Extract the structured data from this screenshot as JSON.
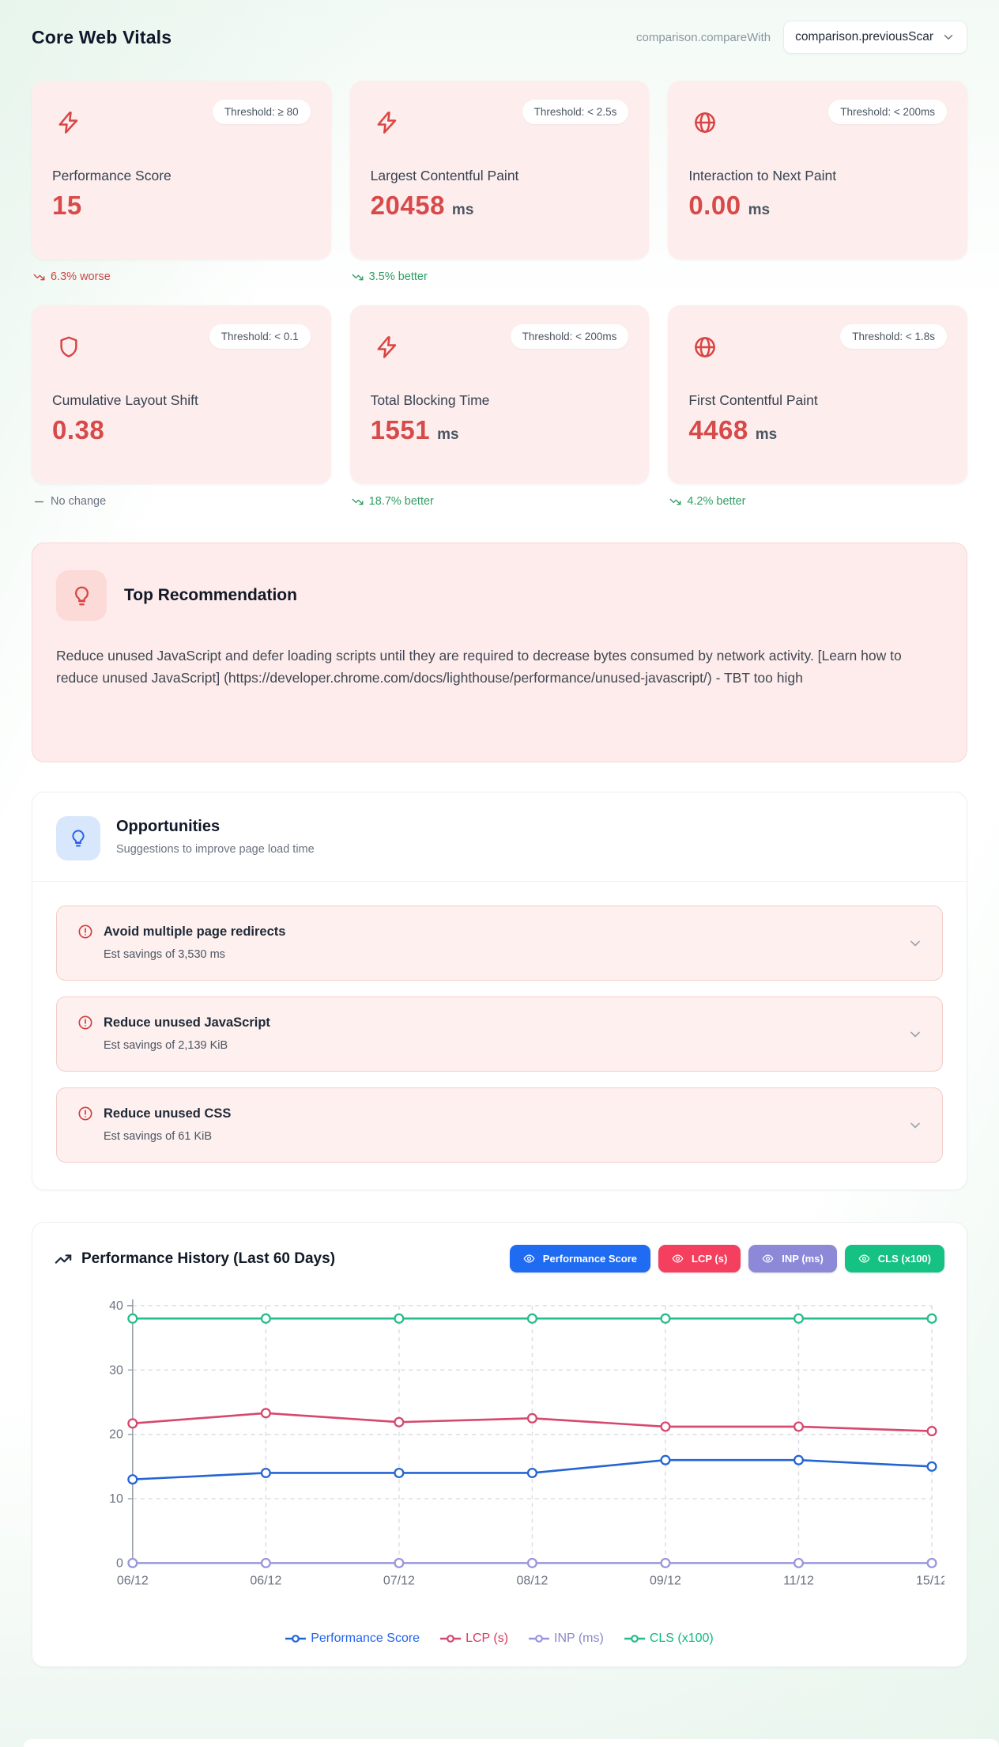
{
  "header": {
    "title": "Core Web Vitals",
    "compare_label": "comparison.compareWith",
    "compare_value": "comparison.previousScar"
  },
  "colors": {
    "trend_red": "#cf4444",
    "trend_green": "#2f9e64",
    "trend_gray": "#6b7280",
    "metric_accent": "#d84a4a"
  },
  "metrics": [
    {
      "icon": "zap-icon",
      "threshold": "Threshold: ≥ 80",
      "title": "Performance Score",
      "value": "15",
      "unit": "",
      "trend": {
        "style": "red",
        "icon": "trend-down-icon",
        "label": "6.3% worse"
      }
    },
    {
      "icon": "zap-icon",
      "threshold": "Threshold: < 2.5s",
      "title": "Largest Contentful Paint",
      "value": "20458",
      "unit": "ms",
      "trend": {
        "style": "green",
        "icon": "trend-down-icon",
        "label": "3.5% better"
      }
    },
    {
      "icon": "globe-icon",
      "threshold": "Threshold: < 200ms",
      "title": "Interaction to Next Paint",
      "value": "0.00",
      "unit": "ms",
      "trend": null
    },
    {
      "icon": "shield-icon",
      "threshold": "Threshold: < 0.1",
      "title": "Cumulative Layout Shift",
      "value": "0.38",
      "unit": "",
      "trend": {
        "style": "gray",
        "icon": "dash-icon",
        "label": "No change"
      }
    },
    {
      "icon": "zap-icon",
      "threshold": "Threshold: < 200ms",
      "title": "Total Blocking Time",
      "value": "1551",
      "unit": "ms",
      "trend": {
        "style": "green",
        "icon": "trend-down-icon",
        "label": "18.7% better"
      }
    },
    {
      "icon": "globe-icon",
      "threshold": "Threshold: < 1.8s",
      "title": "First Contentful Paint",
      "value": "4468",
      "unit": "ms",
      "trend": {
        "style": "green",
        "icon": "trend-down-icon",
        "label": "4.2% better"
      }
    }
  ],
  "top_recommendation": {
    "title": "Top Recommendation",
    "body": "Reduce unused JavaScript and defer loading scripts until they are required to decrease bytes consumed by network activity. [Learn how to reduce unused JavaScript] (https://developer.chrome.com/docs/lighthouse/performance/unused-javascript/) - TBT too high"
  },
  "opportunities": {
    "title": "Opportunities",
    "subtitle": "Suggestions to improve page load time",
    "items": [
      {
        "title": "Avoid multiple page redirects",
        "savings": "Est savings of 3,530 ms"
      },
      {
        "title": "Reduce unused JavaScript",
        "savings": "Est savings of 2,139 KiB"
      },
      {
        "title": "Reduce unused CSS",
        "savings": "Est savings of 61 KiB"
      }
    ]
  },
  "chart_section": {
    "title": "Performance History (Last 60 Days)"
  },
  "chart_data": {
    "type": "line",
    "title": "Performance History (Last 60 Days)",
    "categories": [
      "06/12",
      "06/12",
      "07/12",
      "08/12",
      "09/12",
      "11/12",
      "15/12"
    ],
    "series": [
      {
        "name": "Performance Score",
        "values": [
          13,
          14,
          14,
          14,
          16,
          16,
          15
        ],
        "line_color": "#2465d3",
        "button_color": "#1f6bf2",
        "legend_text_color": "#2563eb"
      },
      {
        "name": "LCP (s)",
        "values": [
          21.7,
          23.3,
          21.9,
          22.5,
          21.2,
          21.2,
          20.5
        ],
        "line_color": "#d6486e",
        "button_color": "#f43f5e",
        "legend_text_color": "#d93a5f"
      },
      {
        "name": "INP (ms)",
        "values": [
          0,
          0,
          0,
          0,
          0,
          0,
          0
        ],
        "line_color": "#9a96dd",
        "button_color": "#8d89d8",
        "legend_text_color": "#8b87c9"
      },
      {
        "name": "CLS (x100)",
        "values": [
          38,
          38,
          38,
          38,
          38,
          38,
          38
        ],
        "line_color": "#25bd87",
        "button_color": "#16c283",
        "legend_text_color": "#10b981"
      }
    ],
    "ylim": [
      0,
      40
    ],
    "yticks": [
      0,
      10,
      20,
      30,
      40
    ],
    "grid": "dashed",
    "legend_position": "bottom"
  }
}
